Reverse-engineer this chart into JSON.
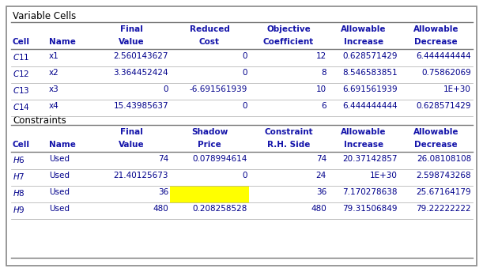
{
  "title_var": "Variable Cells",
  "title_con": "Constraints",
  "var_rows": [
    [
      "$C$11",
      "x1",
      "2.560143627",
      "0",
      "12",
      "0.628571429",
      "6.444444444"
    ],
    [
      "$C$12",
      "x2",
      "3.364452424",
      "0",
      "8",
      "8.546583851",
      "0.75862069"
    ],
    [
      "$C$13",
      "x3",
      "0",
      "-6.691561939",
      "10",
      "6.691561939",
      "1E+30"
    ],
    [
      "$C$14",
      "x4",
      "15.43985637",
      "0",
      "6",
      "6.444444444",
      "0.628571429"
    ]
  ],
  "con_rows": [
    [
      "$H$6",
      "Used",
      "74",
      "0.078994614",
      "74",
      "20.37142857",
      "26.08108108"
    ],
    [
      "$H$7",
      "Used",
      "21.40125673",
      "0",
      "24",
      "1E+30",
      "2.598743268"
    ],
    [
      "$H$8",
      "Used",
      "36",
      "",
      "36",
      "7.170278638",
      "25.67164179"
    ],
    [
      "$H$9",
      "Used",
      "480",
      "0.208258528",
      "480",
      "79.31506849",
      "79.22222222"
    ]
  ],
  "header_color": "#1414AA",
  "text_color": "#00008B",
  "highlight_color": "#FFFF00",
  "highlight_row": 2,
  "bg_color": "#FFFFFF"
}
